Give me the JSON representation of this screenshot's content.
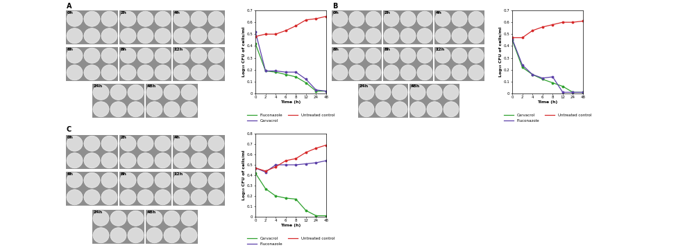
{
  "chart_data": [
    {
      "type": "line",
      "panel": "A",
      "image_labels": [
        "0h",
        "2h",
        "4h",
        "6h",
        "8h",
        "12h",
        "24h",
        "48h"
      ],
      "x_label": "Time (h)",
      "y_label": "Log₁₀ CFU of cells/ml",
      "categories": [
        "0",
        "2",
        "4",
        "6",
        "8",
        "12",
        "24",
        "48"
      ],
      "ylim": [
        0,
        0.7
      ],
      "yticks": [
        0,
        0.1,
        0.2,
        0.3,
        0.4,
        0.5,
        0.6,
        0.7
      ],
      "legend": "upper center",
      "marker": "o",
      "series": [
        {
          "name": "Fluconazole",
          "color": "#2ca02c",
          "values": [
            0.42,
            0.19,
            0.18,
            0.16,
            0.14,
            0.09,
            0.02,
            0.02
          ]
        },
        {
          "name": "Carvacrol",
          "color": "#5b3fa8",
          "values": [
            0.52,
            0.19,
            0.19,
            0.18,
            0.18,
            0.12,
            0.03,
            0.02
          ]
        },
        {
          "name": "Untreated control",
          "color": "#d62728",
          "values": [
            0.48,
            0.5,
            0.5,
            0.53,
            0.57,
            0.62,
            0.63,
            0.65
          ]
        }
      ]
    },
    {
      "type": "line",
      "panel": "B",
      "image_labels": [
        "0h",
        "2h",
        "4h",
        "6h",
        "8h",
        "12h",
        "24h",
        "48h"
      ],
      "x_label": "Time (h)",
      "y_label": "Log₁₀ CFU of cells/ml",
      "categories": [
        "0",
        "2",
        "4",
        "6",
        "8",
        "12",
        "24",
        "48"
      ],
      "ylim": [
        0,
        0.7
      ],
      "yticks": [
        0,
        0.1,
        0.2,
        0.3,
        0.4,
        0.5,
        0.6,
        0.7
      ],
      "legend": "upper center",
      "marker": "o",
      "series": [
        {
          "name": "Carvacrol",
          "color": "#2ca02c",
          "values": [
            0.45,
            0.22,
            0.16,
            0.12,
            0.09,
            0.06,
            0.01,
            0.01
          ]
        },
        {
          "name": "Fluconazole",
          "color": "#5b3fa8",
          "values": [
            0.46,
            0.24,
            0.16,
            0.13,
            0.14,
            0.01,
            0.01,
            0.01
          ]
        },
        {
          "name": "Untreated control",
          "color": "#d62728",
          "values": [
            0.47,
            0.47,
            0.53,
            0.56,
            0.58,
            0.6,
            0.6,
            0.61
          ]
        }
      ]
    },
    {
      "type": "line",
      "panel": "C",
      "image_labels": [
        "0h",
        "2h",
        "4h",
        "6h",
        "8h",
        "12h",
        "24h",
        "48h"
      ],
      "x_label": "Time (h)",
      "y_label": "Log₁₀ CFU of cells/ml",
      "categories": [
        "0",
        "2",
        "4",
        "6",
        "8",
        "12",
        "24",
        "48"
      ],
      "ylim": [
        0,
        0.8
      ],
      "yticks": [
        0,
        0.1,
        0.2,
        0.3,
        0.4,
        0.5,
        0.6,
        0.7,
        0.8
      ],
      "legend": "upper center",
      "marker": "o",
      "series": [
        {
          "name": "Carvacrol",
          "color": "#2ca02c",
          "values": [
            0.42,
            0.27,
            0.2,
            0.18,
            0.17,
            0.06,
            0.01,
            0.01
          ]
        },
        {
          "name": "Fluconazole",
          "color": "#5b3fa8",
          "values": [
            0.47,
            0.43,
            0.5,
            0.5,
            0.5,
            0.51,
            0.52,
            0.54
          ]
        },
        {
          "name": "Untreated control",
          "color": "#d62728",
          "values": [
            0.47,
            0.44,
            0.48,
            0.54,
            0.56,
            0.62,
            0.66,
            0.69
          ]
        }
      ]
    }
  ]
}
